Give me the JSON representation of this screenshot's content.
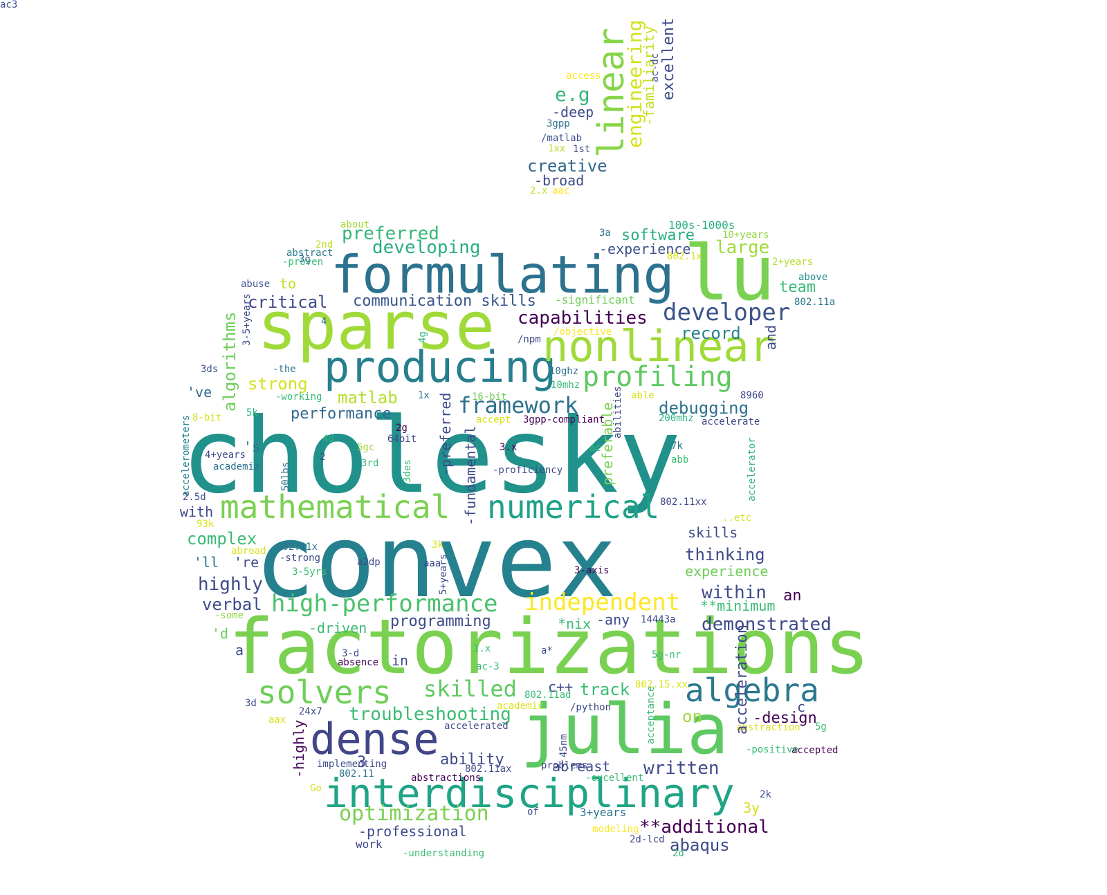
{
  "words": [
    {
      "t": "cholesky",
      "c": "#21918c",
      "r": 0
    },
    {
      "t": "convex",
      "c": "#26818e",
      "r": 0
    },
    {
      "t": "factorizations",
      "c": "#7ad151",
      "r": 0
    },
    {
      "t": "sparse",
      "c": "#a0da39",
      "r": 0
    },
    {
      "t": "julia",
      "c": "#5ec962",
      "r": 0
    },
    {
      "t": "lu",
      "c": "#7ad151",
      "r": 0
    },
    {
      "t": "formulating",
      "c": "#2c728e",
      "r": 0
    },
    {
      "t": "producing",
      "c": "#277f8e",
      "r": 0
    },
    {
      "t": "nonlinear",
      "c": "#a0da39",
      "r": 0
    },
    {
      "t": "dense",
      "c": "#404688",
      "r": 0
    },
    {
      "t": "interdisciplinary",
      "c": "#20a486",
      "r": 0
    },
    {
      "t": "mathematical",
      "c": "#7ad151",
      "r": 0
    },
    {
      "t": "numerical",
      "c": "#1fa187",
      "r": 0
    },
    {
      "t": "solvers",
      "c": "#6ece58",
      "r": 0
    },
    {
      "t": "algebra",
      "c": "#2a788e",
      "r": 0
    },
    {
      "t": "profiling",
      "c": "#5ec962",
      "r": 0
    },
    {
      "t": "developer",
      "c": "#3b528b",
      "r": 0
    },
    {
      "t": "independent",
      "c": "#fde725",
      "r": 0
    },
    {
      "t": "high-performance",
      "c": "#4ac16d",
      "r": 0
    },
    {
      "t": "linear",
      "c": "#86d549",
      "r": 90
    },
    {
      "t": "framework",
      "c": "#2d708e",
      "r": 0
    },
    {
      "t": "skilled",
      "c": "#5ec962",
      "r": 0
    },
    {
      "t": "capabilities",
      "c": "#440154",
      "r": 0
    },
    {
      "t": "optimization",
      "c": "#7ad151",
      "r": 0
    },
    {
      "t": "creative",
      "c": "#31688e",
      "r": 0
    },
    {
      "t": "engineering",
      "c": "#d2e21b",
      "r": 90
    },
    {
      "t": "e.g",
      "c": "#35b779",
      "r": 0
    },
    {
      "t": "excellent",
      "c": "#3e4a89",
      "r": 90
    },
    {
      "t": "-familiarity",
      "c": "#c2df23",
      "r": 90
    },
    {
      "t": "-deep",
      "c": "#3e4a89",
      "r": 0
    },
    {
      "t": "3gpp",
      "c": "#2c728e",
      "r": 0
    },
    {
      "t": "/matlab",
      "c": "#3b528b",
      "r": 0
    },
    {
      "t": "1xx",
      "c": "#b5de2b",
      "r": 0
    },
    {
      "t": "1st",
      "c": "#3e4a89",
      "r": 0
    },
    {
      "t": "-broad",
      "c": "#3e4a89",
      "r": 0
    },
    {
      "t": "2.x",
      "c": "#c2df23",
      "r": 0
    },
    {
      "t": "aac",
      "c": "#fde725",
      "r": 0
    },
    {
      "t": "access",
      "c": "#fde725",
      "r": 0
    },
    {
      "t": "ac-dc",
      "c": "#3b528b",
      "r": 90
    },
    {
      "t": "about",
      "c": "#a5db36",
      "r": 0
    },
    {
      "t": "preferred",
      "c": "#35b779",
      "r": 0
    },
    {
      "t": "developing",
      "c": "#29af7f",
      "r": 0
    },
    {
      "t": "software",
      "c": "#29af7f",
      "r": 0
    },
    {
      "t": "-experience",
      "c": "#3b528b",
      "r": 0
    },
    {
      "t": "large",
      "c": "#a0da39",
      "r": 0
    },
    {
      "t": "100s-1000s",
      "c": "#29af7f",
      "r": 0
    },
    {
      "t": "10+years",
      "c": "#90d743",
      "r": 0
    },
    {
      "t": "3a",
      "c": "#2a788e",
      "r": 0
    },
    {
      "t": "802.1x",
      "c": "#d8e219",
      "r": 0
    },
    {
      "t": "2+years",
      "c": "#b5de2b",
      "r": 0
    },
    {
      "t": "above",
      "c": "#228c8d",
      "r": 0
    },
    {
      "t": "team",
      "c": "#3bbb75",
      "r": 0
    },
    {
      "t": "802.11a",
      "c": "#2a788e",
      "r": 0
    },
    {
      "t": "2nd",
      "c": "#c2df23",
      "r": 0
    },
    {
      "t": "abstract",
      "c": "#2a788e",
      "r": 0
    },
    {
      "t": "-proven",
      "c": "#3bbb75",
      "r": 0
    },
    {
      "t": "3g",
      "c": "#2c728e",
      "r": 0
    },
    {
      "t": "to",
      "c": "#c2df23",
      "r": 0
    },
    {
      "t": "abuse",
      "c": "#3b528b",
      "r": 0
    },
    {
      "t": "critical",
      "c": "#3e4a89",
      "r": 0
    },
    {
      "t": "communication skills",
      "c": "#39568c",
      "r": 0
    },
    {
      "t": "-significant",
      "c": "#6ece58",
      "r": 0
    },
    {
      "t": "record",
      "c": "#26818e",
      "r": 0
    },
    {
      "t": "and",
      "c": "#3e4a89",
      "r": 90
    },
    {
      "t": "/objective",
      "c": "#fde725",
      "r": 0
    },
    {
      "t": "/npm",
      "c": "#3e4a89",
      "r": 0
    },
    {
      "t": "4g",
      "c": "#2db27d",
      "r": 90
    },
    {
      "t": "4",
      "c": "#2c728e",
      "r": 0
    },
    {
      "t": "algorithms",
      "c": "#6ece58",
      "r": 90
    },
    {
      "t": "3-5+years",
      "c": "#3e4a89",
      "r": 90
    },
    {
      "t": "3ds",
      "c": "#3b528b",
      "r": 0
    },
    {
      "t": "-the",
      "c": "#2c728e",
      "r": 0
    },
    {
      "t": "strong",
      "c": "#d2e21b",
      "r": 0
    },
    {
      "t": "'ve",
      "c": "#31688e",
      "r": 0
    },
    {
      "t": "-working",
      "c": "#3bbb75",
      "r": 0
    },
    {
      "t": "matlab",
      "c": "#b5de2b",
      "r": 0
    },
    {
      "t": "1x",
      "c": "#2c728e",
      "r": 0
    },
    {
      "t": "10ghz",
      "c": "#2c728e",
      "r": 0
    },
    {
      "t": "10mhz",
      "c": "#35b779",
      "r": 0
    },
    {
      "t": "16-bit",
      "c": "#6ece58",
      "r": 0
    },
    {
      "t": "able",
      "c": "#d8e219",
      "r": 0
    },
    {
      "t": "8960",
      "c": "#3e4a89",
      "r": 0
    },
    {
      "t": "debugging",
      "c": "#2c728e",
      "r": 0
    },
    {
      "t": "200mhz",
      "c": "#29af7f",
      "r": 0
    },
    {
      "t": "accelerate",
      "c": "#3e4a89",
      "r": 0
    },
    {
      "t": "abilities",
      "c": "#3e4a89",
      "r": 90
    },
    {
      "t": "preferable",
      "c": "#7ad151",
      "r": 90
    },
    {
      "t": "-preferred",
      "c": "#3e4a89",
      "r": 90
    },
    {
      "t": "3gpp-compliant",
      "c": "#440154",
      "r": 0
    },
    {
      "t": "accept",
      "c": "#d8e219",
      "r": 0
    },
    {
      "t": "8-bit",
      "c": "#d8e219",
      "r": 0
    },
    {
      "t": "5k",
      "c": "#2db27d",
      "r": 0
    },
    {
      "t": "performance",
      "c": "#31688e",
      "r": 0
    },
    {
      "t": "accelerometers",
      "c": "#26818e",
      "r": 90
    },
    {
      "t": "2g",
      "c": "#440154",
      "r": 0
    },
    {
      "t": "64bit",
      "c": "#3e4a89",
      "r": 0
    },
    {
      "t": "4d",
      "c": "#2db27d",
      "r": 0
    },
    {
      "t": "'s",
      "c": "#2c728e",
      "r": 0
    },
    {
      "t": "5gc",
      "c": "#a0da39",
      "r": 0
    },
    {
      "t": "3.x",
      "c": "#440154",
      "r": 0
    },
    {
      "t": "ac",
      "c": "#3bbb75",
      "r": 0
    },
    {
      "t": "7k",
      "c": "#2c728e",
      "r": 0
    },
    {
      "t": "4+years",
      "c": "#3e4a89",
      "r": 0
    },
    {
      "t": "2",
      "c": "#3e4a89",
      "r": 0
    },
    {
      "t": "academia",
      "c": "#2c728e",
      "r": 0
    },
    {
      "t": "3rd",
      "c": "#3bbb75",
      "r": 0
    },
    {
      "t": "50lbs",
      "c": "#2c728e",
      "r": 90
    },
    {
      "t": "3des",
      "c": "#3bbb75",
      "r": 90
    },
    {
      "t": "-fundamental",
      "c": "#3e4a89",
      "r": 90
    },
    {
      "t": "-proficiency",
      "c": "#3e4a89",
      "r": 0
    },
    {
      "t": "abb",
      "c": "#3bbb75",
      "r": 0
    },
    {
      "t": "accelerator",
      "c": "#2db27d",
      "r": 90
    },
    {
      "t": "2.5d",
      "c": "#3e4a89",
      "r": 0
    },
    {
      "t": "with",
      "c": "#3e4a89",
      "r": 0
    },
    {
      "t": "802.11xx",
      "c": "#3e4a89",
      "r": 0
    },
    {
      "t": "..etc",
      "c": "#d8e219",
      "r": 0
    },
    {
      "t": "93k",
      "c": "#d8e219",
      "r": 0
    },
    {
      "t": "complex",
      "c": "#3bbb75",
      "r": 0
    },
    {
      "t": "skills",
      "c": "#3e4a89",
      "r": 0
    },
    {
      "t": "thinking",
      "c": "#3e4a89",
      "r": 0
    },
    {
      "t": "abroad",
      "c": "#d8e219",
      "r": 0
    },
    {
      "t": "802.11x",
      "c": "#2c728e",
      "r": 0
    },
    {
      "t": "3k",
      "c": "#d8e219",
      "r": 0
    },
    {
      "t": "'ll",
      "c": "#2c728e",
      "r": 0
    },
    {
      "t": "'re",
      "c": "#3e4a89",
      "r": 0
    },
    {
      "t": "-strong",
      "c": "#3e4a89",
      "r": 0
    },
    {
      "t": "a2dp",
      "c": "#3e4a89",
      "r": 0
    },
    {
      "t": "aaa",
      "c": "#3e4a89",
      "r": 0
    },
    {
      "t": "5+years",
      "c": "#3e4a89",
      "r": 90
    },
    {
      "t": "3-axis",
      "c": "#440154",
      "r": 0
    },
    {
      "t": "experience",
      "c": "#6ece58",
      "r": 0
    },
    {
      "t": "3-5yrs",
      "c": "#3bbb75",
      "r": 0
    },
    {
      "t": "highly",
      "c": "#3e4a89",
      "r": 0
    },
    {
      "t": "within",
      "c": "#3e4a89",
      "r": 0
    },
    {
      "t": "an",
      "c": "#440154",
      "r": 0
    },
    {
      "t": "verbal",
      "c": "#3e4a89",
      "r": 0
    },
    {
      "t": "**minimum",
      "c": "#3bbb75",
      "r": 0
    },
    {
      "t": "-some",
      "c": "#90d743",
      "r": 0
    },
    {
      "t": "-driven",
      "c": "#3bbb75",
      "r": 0
    },
    {
      "t": "programming",
      "c": "#3e4a89",
      "r": 0
    },
    {
      "t": "*nix",
      "c": "#3bbb75",
      "r": 0
    },
    {
      "t": "-any",
      "c": "#3e4a89",
      "r": 0
    },
    {
      "t": "14443a",
      "c": "#3e4a89",
      "r": 0
    },
    {
      "t": "demonstrated",
      "c": "#3e4a89",
      "r": 0
    },
    {
      "t": "'d",
      "c": "#6ece58",
      "r": 0
    },
    {
      "t": "a",
      "c": "#3e4a89",
      "r": 0
    },
    {
      "t": "3-d",
      "c": "#3e4a89",
      "r": 0
    },
    {
      "t": "absence",
      "c": "#440154",
      "r": 0
    },
    {
      "t": "in",
      "c": "#3e4a89",
      "r": 0
    },
    {
      "t": "1.x",
      "c": "#3bbb75",
      "r": 0
    },
    {
      "t": "a*",
      "c": "#3e4a89",
      "r": 0
    },
    {
      "t": "5g-nr",
      "c": "#3bbb75",
      "r": 0
    },
    {
      "t": "ac-3",
      "c": "#3bbb75",
      "r": 0
    },
    {
      "t": "c++",
      "c": "#3e4a89",
      "r": 0
    },
    {
      "t": "track",
      "c": "#3bbb75",
      "r": 0
    },
    {
      "t": "802.15.xx",
      "c": "#d8e219",
      "r": 0
    },
    {
      "t": "c",
      "c": "#3e4a89",
      "r": 0
    },
    {
      "t": "-design",
      "c": "#440154",
      "r": 0
    },
    {
      "t": "3d",
      "c": "#3e4a89",
      "r": 0
    },
    {
      "t": "24x7",
      "c": "#3e4a89",
      "r": 0
    },
    {
      "t": "troubleshooting",
      "c": "#3bbb75",
      "r": 0
    },
    {
      "t": "802.11ad",
      "c": "#3bbb75",
      "r": 0
    },
    {
      "t": "academic",
      "c": "#d8e219",
      "r": 0
    },
    {
      "t": "/python",
      "c": "#3e4a89",
      "r": 0
    },
    {
      "t": "acceptance",
      "c": "#3bbb75",
      "r": 90
    },
    {
      "t": "on",
      "c": "#a0da39",
      "r": 0
    },
    {
      "t": "abstraction",
      "c": "#d8e219",
      "r": 0
    },
    {
      "t": "5g",
      "c": "#3bbb75",
      "r": 0
    },
    {
      "t": "aax",
      "c": "#d8e219",
      "r": 0
    },
    {
      "t": "accelerated",
      "c": "#3e4a89",
      "r": 0
    },
    {
      "t": "-highly",
      "c": "#440154",
      "r": 90
    },
    {
      "t": "problems",
      "c": "#3e4a89",
      "r": 0
    },
    {
      "t": "45nm",
      "c": "#3e4a89",
      "r": 90
    },
    {
      "t": "acceleration",
      "c": "#3e4a89",
      "r": 90
    },
    {
      "t": "-positive",
      "c": "#3bbb75",
      "r": 0
    },
    {
      "t": "accepted",
      "c": "#440154",
      "r": 0
    },
    {
      "t": "3",
      "c": "#3e4a89",
      "r": 0
    },
    {
      "t": "ability",
      "c": "#3e4a89",
      "r": 0
    },
    {
      "t": "written",
      "c": "#3e4a89",
      "r": 0
    },
    {
      "t": "implementing",
      "c": "#3e4a89",
      "r": 0
    },
    {
      "t": "802.11",
      "c": "#2c728e",
      "r": 0
    },
    {
      "t": "abstractions",
      "c": "#440154",
      "r": 0
    },
    {
      "t": "802.11ax",
      "c": "#3e4a89",
      "r": 0
    },
    {
      "t": "abreast",
      "c": "#3e4a89",
      "r": 0
    },
    {
      "t": "-excellent",
      "c": "#3bbb75",
      "r": 0
    },
    {
      "t": "Go",
      "c": "#d8e219",
      "r": 0
    },
    {
      "t": "2k",
      "c": "#3e4a89",
      "r": 0
    },
    {
      "t": "3y",
      "c": "#d8e219",
      "r": 0
    },
    {
      "t": "of",
      "c": "#3e4a89",
      "r": 0
    },
    {
      "t": "3+years",
      "c": "#2c728e",
      "r": 0
    },
    {
      "t": "-professional",
      "c": "#3e4a89",
      "r": 0
    },
    {
      "t": "**additional",
      "c": "#440154",
      "r": 0
    },
    {
      "t": "modeling",
      "c": "#fde725",
      "r": 0
    },
    {
      "t": "2d-lcd",
      "c": "#3e4a89",
      "r": 0
    },
    {
      "t": "abaqus",
      "c": "#3e4a89",
      "r": 0
    },
    {
      "t": "work",
      "c": "#3e4a89",
      "r": 0
    },
    {
      "t": "-understanding",
      "c": "#3bbb75",
      "r": 0
    },
    {
      "t": "2d",
      "c": "#3bbb75",
      "r": 0
    },
    {
      "t": "ac3",
      "c": "#3e4a89",
      "r": 0
    }
  ]
}
